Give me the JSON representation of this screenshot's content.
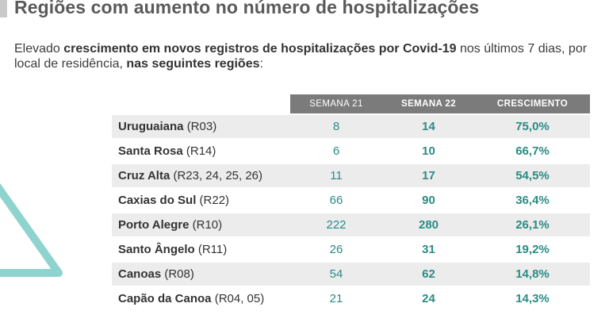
{
  "title": "Regiões com aumento no número de hospitalizações",
  "intro": {
    "part1": "Elevado ",
    "bold1": "crescimento em novos registros de hospitalizações por Covid-19",
    "part2": " nos últimos 7 dias, por local de residência, ",
    "bold2": "nas seguintes regiões",
    "part3": ":"
  },
  "colors": {
    "header_bg": "#7b7b7b",
    "row_shade": "#ececec",
    "value_teal": "#2a8c84",
    "triangle_teal": "#8fd3cf"
  },
  "table": {
    "headers": [
      "SEMANA 21",
      "SEMANA 22",
      "CRESCIMENTO"
    ],
    "rows": [
      {
        "name": "Uruguaiana",
        "code": "(R03)",
        "week21": "8",
        "week22": "14",
        "growth": "75,0%"
      },
      {
        "name": "Santa Rosa",
        "code": "(R14)",
        "week21": "6",
        "week22": "10",
        "growth": "66,7%"
      },
      {
        "name": "Cruz Alta",
        "code": "(R23, 24, 25, 26)",
        "week21": "11",
        "week22": "17",
        "growth": "54,5%"
      },
      {
        "name": "Caxias do Sul",
        "code": "(R22)",
        "week21": "66",
        "week22": "90",
        "growth": "36,4%"
      },
      {
        "name": "Porto Alegre",
        "code": "(R10)",
        "week21": "222",
        "week22": "280",
        "growth": "26,1%"
      },
      {
        "name": "Santo Ângelo",
        "code": "(R11)",
        "week21": "26",
        "week22": "31",
        "growth": "19,2%"
      },
      {
        "name": "Canoas",
        "code": "(R08)",
        "week21": "54",
        "week22": "62",
        "growth": "14,8%"
      },
      {
        "name": "Capão da Canoa",
        "code": "(R04, 05)",
        "week21": "21",
        "week22": "24",
        "growth": "14,3%"
      }
    ]
  }
}
